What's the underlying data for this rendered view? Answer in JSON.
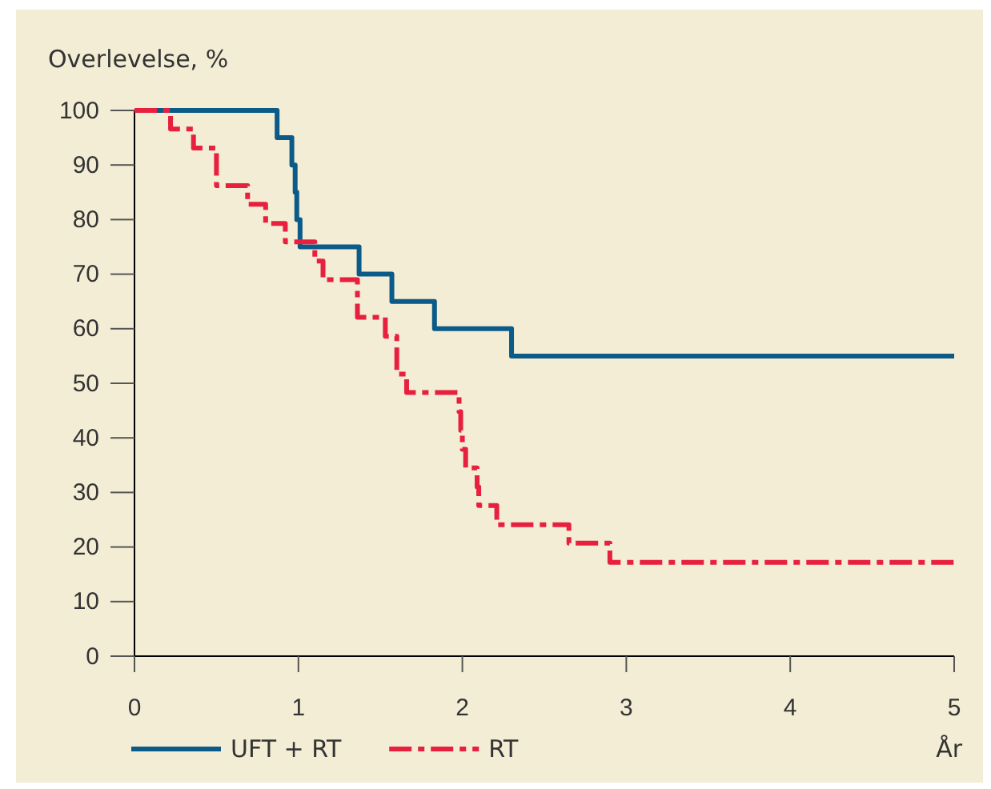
{
  "chart_data": {
    "type": "step",
    "ylabel": "Overlevelse, %",
    "xlabel": "År",
    "xlim": [
      0,
      5
    ],
    "xticks": [
      0,
      1,
      2,
      3,
      4,
      5
    ],
    "ylim": [
      0,
      100
    ],
    "yticks": [
      0,
      10,
      20,
      30,
      40,
      50,
      60,
      70,
      80,
      90,
      100
    ],
    "grid": false,
    "legend": "bottom",
    "marker": "none",
    "series": [
      {
        "name": "UFT + RT",
        "color": "#0b5a87",
        "line_style": "solid",
        "x": [
          0,
          0.87,
          0.96,
          0.98,
          0.99,
          1.01,
          1.37,
          1.57,
          1.83,
          2.3,
          5
        ],
        "values": [
          100,
          95,
          90,
          85,
          80,
          75,
          70,
          65,
          60,
          55,
          55
        ]
      },
      {
        "name": "RT",
        "color": "#e8203f",
        "line_style": "dashed",
        "x": [
          0,
          0.22,
          0.36,
          0.5,
          0.69,
          0.8,
          0.92,
          1.1,
          1.15,
          1.36,
          1.53,
          1.6,
          1.66,
          1.98,
          1.99,
          2.0,
          2.02,
          2.09,
          2.1,
          2.21,
          2.65,
          2.9,
          5
        ],
        "values": [
          100,
          96.6,
          93.1,
          86.2,
          82.8,
          79.3,
          75.9,
          72.4,
          69,
          62.1,
          58.6,
          51.7,
          48.3,
          44.8,
          41.4,
          37.9,
          34.5,
          31,
          27.6,
          24.1,
          20.7,
          17.2,
          17.2
        ]
      }
    ]
  }
}
